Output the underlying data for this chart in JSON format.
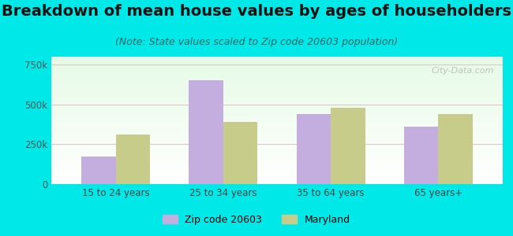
{
  "title": "Breakdown of mean house values by ages of householders",
  "subtitle": "(Note: State values scaled to Zip code 20603 population)",
  "categories": [
    "15 to 24 years",
    "25 to 34 years",
    "35 to 64 years",
    "65 years+"
  ],
  "zip_values": [
    175000,
    650000,
    440000,
    360000
  ],
  "state_values": [
    310000,
    390000,
    480000,
    440000
  ],
  "zip_color": "#c4aee0",
  "state_color": "#c8cc8a",
  "background_color": "#00e8e8",
  "ylim": [
    0,
    800000
  ],
  "yticks": [
    0,
    250000,
    500000,
    750000
  ],
  "ytick_labels": [
    "0",
    "250k",
    "500k",
    "750k"
  ],
  "legend_zip_label": "Zip code 20603",
  "legend_state_label": "Maryland",
  "bar_width": 0.32,
  "title_fontsize": 14,
  "subtitle_fontsize": 9,
  "watermark_text": "City-Data.com"
}
